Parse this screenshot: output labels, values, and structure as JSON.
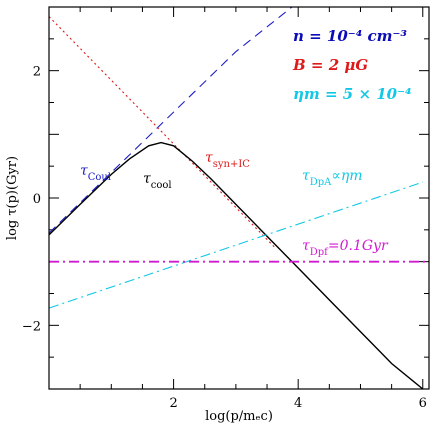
{
  "chart_data": {
    "type": "line",
    "xlabel": "log(p/mₑc)",
    "ylabel": "log τ(p)(Gyr)",
    "xlim": [
      0,
      6.1
    ],
    "ylim": [
      -3,
      3
    ],
    "xticks": [
      {
        "value": 2,
        "label": "2"
      },
      {
        "value": 4,
        "label": "4"
      },
      {
        "value": 6,
        "label": "6"
      }
    ],
    "yticks": [
      {
        "value": 2,
        "label": "2"
      },
      {
        "value": 0,
        "label": "0"
      },
      {
        "value": -2,
        "label": "−2"
      }
    ],
    "minor_step": 0.5,
    "params_text": [
      {
        "text": "n = 10⁻⁴ cm⁻³",
        "color": "#0b0bb8"
      },
      {
        "text": "B = 2 μG",
        "color": "#dd1a1a"
      },
      {
        "text": "ηm = 5 × 10⁻⁴",
        "color": "#12c8e6"
      }
    ],
    "series": [
      {
        "key": "coul",
        "label_main": "τ",
        "label_sub": "Coul",
        "color": "#2020c8",
        "style": "dashed",
        "x": [
          0,
          1.0,
          2.0,
          3.0,
          3.9
        ],
        "y": [
          -0.55,
          0.4,
          1.35,
          2.3,
          3.0
        ]
      },
      {
        "key": "syn",
        "label_main": "τ",
        "label_sub": "syn+IC",
        "color": "#dd1a1a",
        "style": "dotted",
        "x": [
          0,
          1.0,
          2.0,
          3.0,
          3.63
        ],
        "y": [
          2.85,
          1.85,
          0.85,
          -0.15,
          -0.78
        ]
      },
      {
        "key": "cool",
        "label_main": "τ",
        "label_sub": "cool",
        "color": "#000000",
        "style": "solid",
        "x": [
          0,
          0.5,
          1.0,
          1.3,
          1.6,
          1.8,
          2.0,
          2.3,
          2.6,
          3.0,
          3.5,
          4.0,
          4.5,
          5.0,
          5.5,
          6.0
        ],
        "y": [
          -0.58,
          -0.1,
          0.37,
          0.62,
          0.82,
          0.87,
          0.82,
          0.58,
          0.3,
          -0.1,
          -0.6,
          -1.1,
          -1.6,
          -2.1,
          -2.6,
          -3.0
        ]
      },
      {
        "key": "dpa",
        "label_main": "τ",
        "label_sub": "DpA",
        "label_tail": "∝ηm",
        "color": "#12c8e6",
        "style": "dashdot",
        "x": [
          0,
          6.0
        ],
        "y": [
          -1.73,
          0.25
        ]
      },
      {
        "key": "dpf",
        "label_main": "τ",
        "label_sub": "Dpf",
        "label_tail": "=0.1Gyr",
        "color": "#d21ad2",
        "style": "dashdot",
        "x": [
          0,
          6.1
        ],
        "y": [
          -1.0,
          -1.0
        ]
      }
    ]
  }
}
